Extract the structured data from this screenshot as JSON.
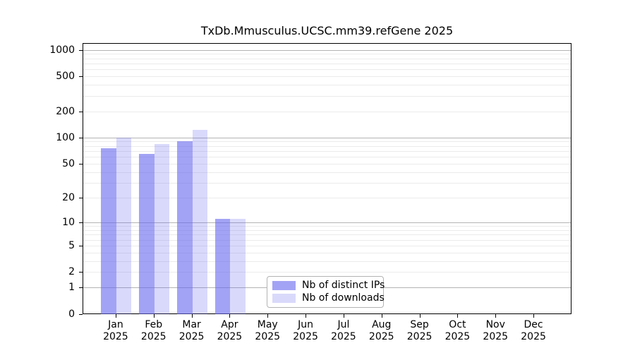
{
  "chart_data": {
    "type": "bar",
    "title": "TxDb.Mmusculus.UCSC.mm39.refGene 2025",
    "categories": [
      "Jan 2025",
      "Feb 2025",
      "Mar 2025",
      "Apr 2025",
      "May 2025",
      "Jun 2025",
      "Jul 2025",
      "Aug 2025",
      "Sep 2025",
      "Oct 2025",
      "Nov 2025",
      "Dec 2025"
    ],
    "x_tick_months": [
      "Jan",
      "Feb",
      "Mar",
      "Apr",
      "May",
      "Jun",
      "Jul",
      "Aug",
      "Sep",
      "Oct",
      "Nov",
      "Dec"
    ],
    "x_tick_year": "2025",
    "series": [
      {
        "name": "Nb of distinct IPs",
        "color": "rgba(102,102,238,0.6)",
        "values": [
          75,
          65,
          90,
          11,
          0,
          0,
          0,
          0,
          0,
          0,
          0,
          0
        ]
      },
      {
        "name": "Nb of downloads",
        "color": "rgba(102,102,238,0.25)",
        "values": [
          100,
          85,
          123,
          11,
          0,
          0,
          0,
          0,
          0,
          0,
          0,
          0
        ]
      }
    ],
    "yscale": "log1p",
    "ylim": [
      0,
      1192
    ],
    "y_ticks": [
      0,
      1,
      2,
      5,
      10,
      20,
      50,
      100,
      200,
      500,
      1000
    ],
    "grid_major_values": [
      1,
      10,
      100,
      1000
    ],
    "grid_minor_decades": [
      1,
      10,
      100
    ],
    "legend_position": "lower center-left",
    "colors": {
      "minor_grid": "#ebebeb",
      "major_grid": "#b3b3b3",
      "axis": "#000000",
      "background": "#ffffff"
    }
  }
}
